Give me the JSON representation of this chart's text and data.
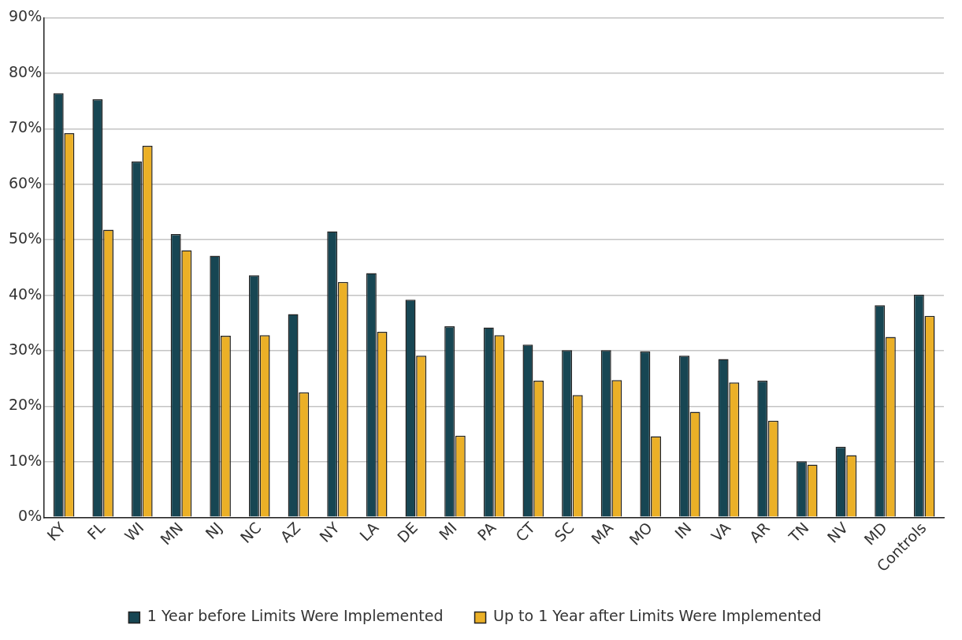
{
  "chart_data": {
    "type": "bar",
    "categories": [
      "KY",
      "FL",
      "WI",
      "MN",
      "NJ",
      "NC",
      "AZ",
      "NY",
      "LA",
      "DE",
      "MI",
      "PA",
      "CT",
      "SC",
      "MA",
      "MO",
      "IN",
      "VA",
      "AR",
      "TN",
      "NV",
      "MD",
      "Controls"
    ],
    "series": [
      {
        "name": "1 Year before Limits Were Implemented",
        "color": "#174653",
        "values": [
          76.4,
          75.3,
          64.1,
          51.0,
          47.1,
          43.6,
          36.6,
          51.5,
          44.0,
          39.2,
          34.4,
          34.2,
          31.1,
          30.1,
          30.1,
          29.9,
          29.1,
          28.5,
          24.6,
          10.1,
          12.7,
          38.2,
          40.1
        ]
      },
      {
        "name": "Up to 1 Year after Limits Were Implemented",
        "color": "#ebb027",
        "values": [
          69.2,
          51.8,
          66.9,
          48.1,
          32.7,
          32.8,
          22.5,
          42.4,
          33.4,
          29.1,
          14.7,
          32.8,
          24.6,
          22.0,
          24.7,
          14.6,
          19.0,
          24.3,
          17.4,
          9.5,
          11.2,
          32.5,
          36.3
        ]
      }
    ],
    "ylim": [
      0,
      90
    ],
    "yticks": [
      {
        "value": 0,
        "label": "0%"
      },
      {
        "value": 10,
        "label": "10%"
      },
      {
        "value": 20,
        "label": "20%"
      },
      {
        "value": 30,
        "label": "30%"
      },
      {
        "value": 40,
        "label": "40%"
      },
      {
        "value": 50,
        "label": "50%"
      },
      {
        "value": 60,
        "label": "60%"
      },
      {
        "value": 70,
        "label": "70%"
      },
      {
        "value": 80,
        "label": "80%"
      },
      {
        "value": 90,
        "label": "90%"
      }
    ],
    "grid": "y",
    "legend": "bottom"
  }
}
